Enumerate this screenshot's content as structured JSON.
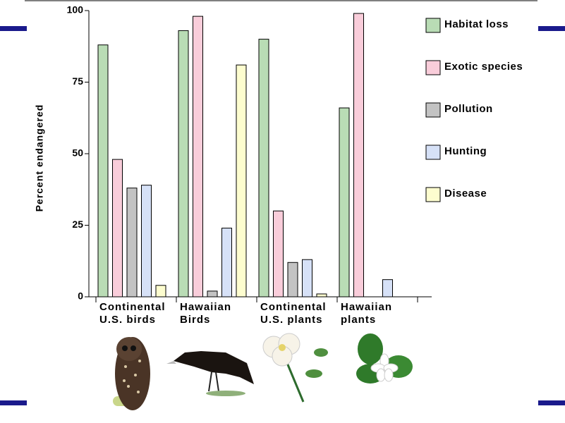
{
  "chart_data": {
    "type": "bar",
    "y_label": "Percent endangered",
    "categories": [
      "Continental\nU.S. birds",
      "Hawaiian\nBirds",
      "Continental\nU.S. plants",
      "Hawaiian\nplants"
    ],
    "series": [
      {
        "name": "Habitat loss",
        "color": "#b9dcb5",
        "values": [
          88,
          93,
          90,
          66
        ]
      },
      {
        "name": "Exotic species",
        "color": "#f9cdda",
        "values": [
          48,
          98,
          30,
          99
        ]
      },
      {
        "name": "Pollution",
        "color": "#c3c3c3",
        "values": [
          38,
          2,
          12,
          null
        ]
      },
      {
        "name": "Hunting",
        "color": "#d6e1f7",
        "values": [
          39,
          24,
          13,
          6
        ]
      },
      {
        "name": "Disease",
        "color": "#fdfdcf",
        "values": [
          4,
          81,
          1,
          null
        ]
      }
    ],
    "ylim": [
      0,
      100
    ],
    "yticks": [
      0,
      25,
      50,
      75,
      100
    ],
    "legend": "right"
  }
}
